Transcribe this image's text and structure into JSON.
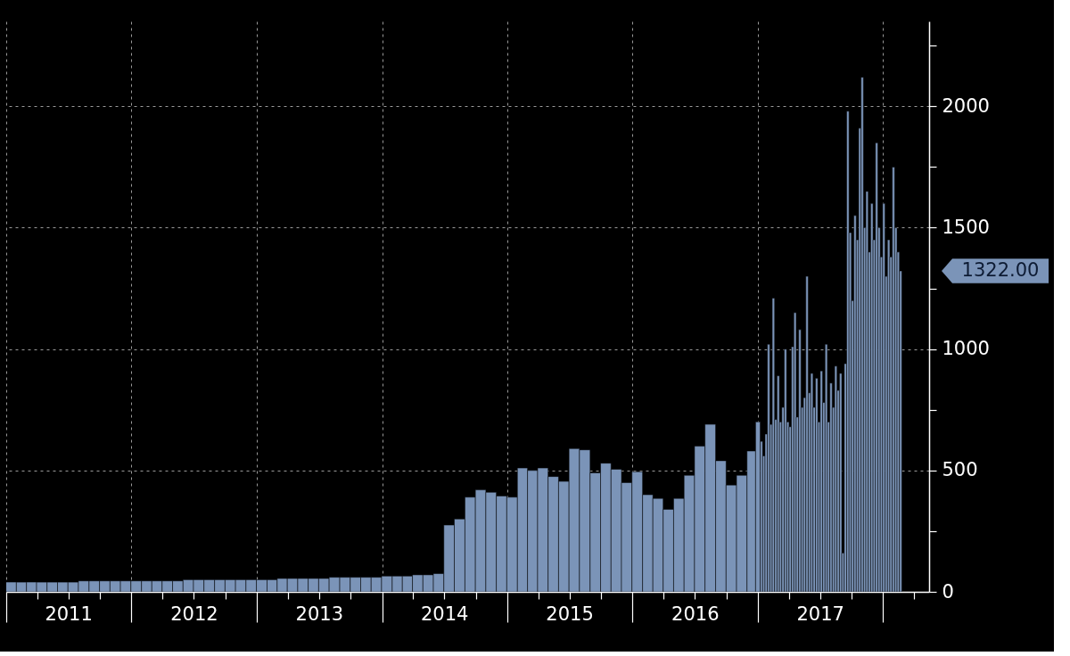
{
  "chart_data": {
    "type": "bar",
    "x": [
      "2011-01-15",
      "2011-02-15",
      "2011-03-15",
      "2011-04-15",
      "2011-05-15",
      "2011-06-15",
      "2011-07-15",
      "2011-08-15",
      "2011-09-15",
      "2011-10-15",
      "2011-11-15",
      "2011-12-15",
      "2012-01-15",
      "2012-02-15",
      "2012-03-15",
      "2012-04-15",
      "2012-05-15",
      "2012-06-15",
      "2012-07-15",
      "2012-08-15",
      "2012-09-15",
      "2012-10-15",
      "2012-11-15",
      "2012-12-15",
      "2013-01-15",
      "2013-02-15",
      "2013-03-15",
      "2013-04-15",
      "2013-05-15",
      "2013-06-15",
      "2013-07-15",
      "2013-08-15",
      "2013-09-15",
      "2013-10-15",
      "2013-11-15",
      "2013-12-15",
      "2014-01-15",
      "2014-02-15",
      "2014-03-15",
      "2014-04-15",
      "2014-05-15",
      "2014-06-15",
      "2014-07-15",
      "2014-08-15",
      "2014-09-15",
      "2014-10-15",
      "2014-11-15",
      "2014-12-15",
      "2015-01-15",
      "2015-02-15",
      "2015-03-15",
      "2015-04-15",
      "2015-05-15",
      "2015-06-15",
      "2015-07-15",
      "2015-08-15",
      "2015-09-15",
      "2015-10-15",
      "2015-11-15",
      "2015-12-15",
      "2016-01-15",
      "2016-02-15",
      "2016-03-15",
      "2016-04-15",
      "2016-05-15",
      "2016-06-15",
      "2016-07-15",
      "2016-08-15",
      "2016-09-15",
      "2016-10-15",
      "2016-11-15",
      "2016-12-15",
      "2017-01-04",
      "2017-01-11",
      "2017-01-18",
      "2017-01-25",
      "2017-02-01",
      "2017-02-08",
      "2017-02-15",
      "2017-02-22",
      "2017-03-01",
      "2017-03-08",
      "2017-03-15",
      "2017-03-22",
      "2017-03-29",
      "2017-04-05",
      "2017-04-12",
      "2017-04-19",
      "2017-04-26",
      "2017-05-03",
      "2017-05-10",
      "2017-05-17",
      "2017-05-24",
      "2017-05-31",
      "2017-06-07",
      "2017-06-14",
      "2017-06-21",
      "2017-06-28",
      "2017-07-05",
      "2017-07-12",
      "2017-07-19",
      "2017-07-26",
      "2017-08-02",
      "2017-08-09",
      "2017-08-16",
      "2017-08-23",
      "2017-08-30",
      "2017-09-06",
      "2017-09-13",
      "2017-09-20",
      "2017-09-27",
      "2017-10-04",
      "2017-10-11",
      "2017-10-18",
      "2017-10-25",
      "2017-11-01",
      "2017-11-08",
      "2017-11-15",
      "2017-11-22",
      "2017-11-29",
      "2017-12-06",
      "2017-12-13",
      "2017-12-20",
      "2017-12-27",
      "2018-01-03",
      "2018-01-10",
      "2018-01-17",
      "2018-01-24",
      "2018-01-31",
      "2018-02-07",
      "2018-02-14",
      "2018-02-21"
    ],
    "series": [
      {
        "color": "#7b94b8",
        "values": [
          40,
          40,
          40,
          40,
          40,
          40,
          40,
          45,
          45,
          45,
          45,
          45,
          45,
          45,
          45,
          45,
          45,
          50,
          50,
          50,
          50,
          50,
          50,
          50,
          50,
          50,
          55,
          55,
          55,
          55,
          55,
          60,
          60,
          60,
          60,
          60,
          65,
          65,
          65,
          70,
          70,
          75,
          275,
          300,
          390,
          420,
          410,
          395,
          390,
          510,
          500,
          510,
          475,
          455,
          590,
          585,
          490,
          530,
          505,
          450,
          495,
          400,
          385,
          340,
          385,
          480,
          600,
          690,
          540,
          440,
          480,
          580,
          700,
          620,
          560,
          650,
          1020,
          690,
          1210,
          710,
          890,
          700,
          760,
          1000,
          700,
          680,
          1010,
          1150,
          720,
          1080,
          760,
          800,
          1300,
          820,
          900,
          760,
          880,
          700,
          910,
          780,
          1020,
          700,
          860,
          760,
          930,
          830,
          900,
          160,
          940,
          1980,
          1480,
          1200,
          1550,
          1450,
          1910,
          2120,
          1500,
          1650,
          1400,
          1600,
          1450,
          1850,
          1500,
          1380,
          1600,
          1300,
          1450,
          1380,
          1750,
          1500,
          1400,
          1322
        ]
      }
    ],
    "xlim": [
      "2011-01-01",
      "2018-05-15"
    ],
    "xticks": [
      {
        "value": "2011-01-01",
        "label": null
      },
      {
        "value": "2011-04-01",
        "label": null
      },
      {
        "value": "2011-07-01",
        "label": "2011"
      },
      {
        "value": "2011-10-01",
        "label": null
      },
      {
        "value": "2012-01-01",
        "label": null
      },
      {
        "value": "2012-04-01",
        "label": null
      },
      {
        "value": "2012-07-01",
        "label": "2012"
      },
      {
        "value": "2012-10-01",
        "label": null
      },
      {
        "value": "2013-01-01",
        "label": null
      },
      {
        "value": "2013-04-01",
        "label": null
      },
      {
        "value": "2013-07-01",
        "label": "2013"
      },
      {
        "value": "2013-10-01",
        "label": null
      },
      {
        "value": "2014-01-01",
        "label": null
      },
      {
        "value": "2014-04-01",
        "label": null
      },
      {
        "value": "2014-07-01",
        "label": "2014"
      },
      {
        "value": "2014-10-01",
        "label": null
      },
      {
        "value": "2015-01-01",
        "label": null
      },
      {
        "value": "2015-04-01",
        "label": null
      },
      {
        "value": "2015-07-01",
        "label": "2015"
      },
      {
        "value": "2015-10-01",
        "label": null
      },
      {
        "value": "2016-01-01",
        "label": null
      },
      {
        "value": "2016-04-01",
        "label": null
      },
      {
        "value": "2016-07-01",
        "label": "2016"
      },
      {
        "value": "2016-10-01",
        "label": null
      },
      {
        "value": "2017-01-01",
        "label": null
      },
      {
        "value": "2017-04-01",
        "label": null
      },
      {
        "value": "2017-07-01",
        "label": "2017"
      },
      {
        "value": "2017-10-01",
        "label": null
      },
      {
        "value": "2018-01-01",
        "label": null
      },
      {
        "value": "2018-04-01",
        "label": null
      }
    ],
    "ylim": [
      0,
      2350
    ],
    "yticks": [
      0,
      {
        "value": 250,
        "label": null
      },
      500,
      {
        "value": 750,
        "label": null
      },
      1000,
      {
        "value": 1250,
        "label": null
      },
      1500,
      {
        "value": 1750,
        "label": null
      },
      2000,
      {
        "value": 2250,
        "label": null
      }
    ],
    "grid": true,
    "annotations": [
      "1322.00"
    ]
  }
}
